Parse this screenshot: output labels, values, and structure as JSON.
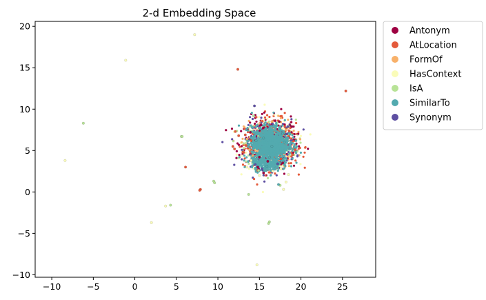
{
  "chart_data": {
    "type": "scatter",
    "title": "2-d Embedding Space",
    "xlabel": "",
    "ylabel": "",
    "xlim": [
      -12,
      29
    ],
    "ylim": [
      -10.3,
      20.6
    ],
    "xticks": [
      -10,
      -5,
      0,
      5,
      10,
      15,
      20,
      25
    ],
    "yticks": [
      -10,
      -5,
      0,
      5,
      10,
      15,
      20
    ],
    "grid": false,
    "legend_position": "outside-top-right",
    "series": [
      {
        "name": "Antonym",
        "color": "#9e0142",
        "points": [
          [
            15.2,
            8.1
          ],
          [
            16.9,
            8.6
          ],
          [
            14.8,
            3.0
          ],
          [
            15.5,
            2.3
          ],
          [
            17.8,
            3.5
          ],
          [
            13.9,
            7.2
          ],
          [
            18.9,
            7.9
          ],
          [
            17.4,
            8.5
          ],
          [
            15.0,
            4.2
          ],
          [
            16.0,
            3.7
          ]
        ]
      },
      {
        "name": "AtLocation",
        "color": "#e45a3b",
        "points": [
          [
            12.4,
            14.8
          ],
          [
            25.4,
            12.2
          ],
          [
            6.1,
            3.0
          ],
          [
            7.9,
            0.3
          ],
          [
            7.8,
            0.2
          ],
          [
            12.1,
            7.3
          ],
          [
            12.5,
            6.8
          ],
          [
            11.8,
            5.5
          ],
          [
            12.0,
            5.2
          ],
          [
            19.3,
            5.1
          ],
          [
            13.0,
            4.8
          ],
          [
            13.4,
            5.6
          ],
          [
            14.0,
            6.2
          ],
          [
            13.3,
            6.9
          ],
          [
            17.6,
            4.0
          ],
          [
            19.0,
            4.5
          ]
        ]
      },
      {
        "name": "FormOf",
        "color": "#f8b16a",
        "points": [
          [
            14.2,
            4.4
          ],
          [
            13.5,
            6.4
          ],
          [
            18.2,
            7.5
          ],
          [
            16.5,
            8.5
          ],
          [
            13.8,
            5.1
          ]
        ]
      },
      {
        "name": "HasContext",
        "color": "#fafcb9",
        "points": [
          [
            7.2,
            19.0
          ],
          [
            -1.1,
            15.9
          ],
          [
            -8.4,
            3.8
          ],
          [
            3.7,
            -1.7
          ],
          [
            2.0,
            -3.7
          ],
          [
            14.7,
            -8.8
          ],
          [
            17.9,
            0.3
          ],
          [
            18.2,
            1.2
          ],
          [
            17.6,
            2.8
          ],
          [
            14.0,
            3.8
          ],
          [
            15.0,
            2.0
          ],
          [
            16.6,
            2.5
          ],
          [
            18.5,
            2.1
          ],
          [
            13.5,
            3.0
          ]
        ]
      },
      {
        "name": "IsA",
        "color": "#b8e397",
        "points": [
          [
            -6.2,
            8.3
          ],
          [
            5.6,
            6.7
          ],
          [
            5.7,
            6.7
          ],
          [
            9.5,
            1.3
          ],
          [
            9.6,
            1.1
          ],
          [
            4.3,
            -1.6
          ],
          [
            13.7,
            -0.3
          ],
          [
            16.2,
            -3.6
          ],
          [
            16.1,
            -3.8
          ],
          [
            14.3,
            9.2
          ],
          [
            17.5,
            0.8
          ],
          [
            14.9,
            2.6
          ]
        ]
      },
      {
        "name": "SimilarTo",
        "color": "#53aaaf",
        "points": [
          [
            17.3,
            0.9
          ],
          [
            18.0,
            6.0
          ],
          [
            16.5,
            5.5
          ],
          [
            15.5,
            6.5
          ],
          [
            14.6,
            6.2
          ],
          [
            16.2,
            4.2
          ],
          [
            17.8,
            7.0
          ],
          [
            15.9,
            3.1
          ],
          [
            19.4,
            6.2
          ]
        ]
      },
      {
        "name": "Synonym",
        "color": "#5e4fa2",
        "points": [
          [
            14.4,
            10.4
          ],
          [
            15.3,
            2.8
          ],
          [
            18.4,
            7.9
          ],
          [
            14.5,
            3.3
          ],
          [
            17.2,
            3.4
          ],
          [
            18.3,
            7.0
          ]
        ]
      }
    ],
    "cluster": {
      "center": [
        16.3,
        5.8
      ],
      "spread": [
        1.8,
        1.7
      ]
    }
  }
}
